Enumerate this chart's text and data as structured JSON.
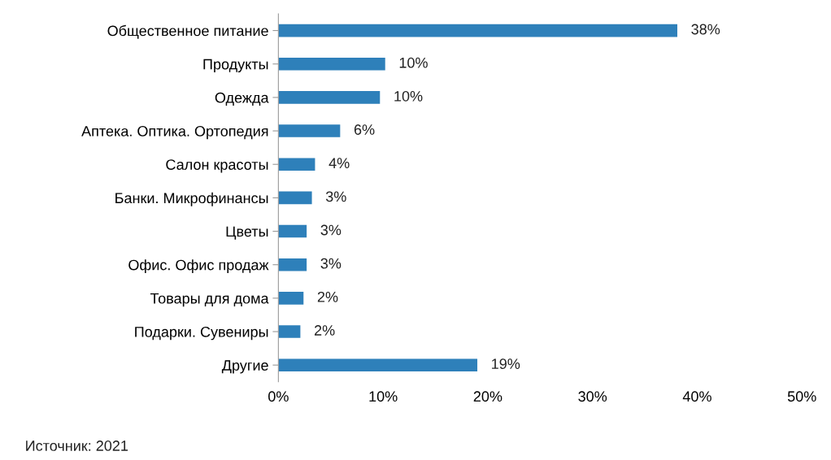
{
  "chart_data": {
    "type": "bar",
    "orientation": "horizontal",
    "categories": [
      "Общественное питание",
      "Продукты",
      "Одежда",
      "Аптека. Оптика. Ортопедия",
      "Салон красоты",
      "Банки. Микрофинансы",
      "Цветы",
      "Офис. Офис продаж",
      "Товары для дома",
      "Подарки. Сувениры",
      "Другие"
    ],
    "values": [
      38.1,
      10.2,
      9.7,
      5.9,
      3.5,
      3.2,
      2.7,
      2.7,
      2.4,
      2.1,
      19.0
    ],
    "value_labels": [
      "38%",
      "10%",
      "10%",
      "6%",
      "4%",
      "3%",
      "3%",
      "3%",
      "2%",
      "2%",
      "19%"
    ],
    "color": "#2e80ba",
    "xlim": [
      0,
      50
    ],
    "xticks": [
      {
        "value": 0,
        "label": "0%"
      },
      {
        "value": 10,
        "label": "10%"
      },
      {
        "value": 20,
        "label": "20%"
      },
      {
        "value": 30,
        "label": "30%"
      },
      {
        "value": 40,
        "label": "40%"
      },
      {
        "value": 50,
        "label": "50%"
      }
    ],
    "grid": false,
    "annotations": [
      "Источник: 2021"
    ]
  }
}
